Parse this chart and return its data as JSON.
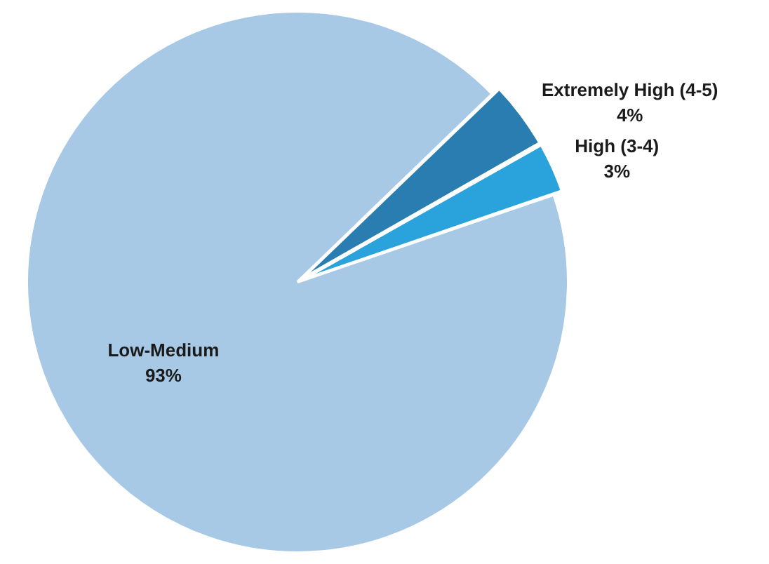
{
  "chart_data": {
    "type": "pie",
    "categories": [
      "Low-Medium",
      "Extremely High (4-5)",
      "High (3-4)"
    ],
    "values": [
      93,
      4,
      3
    ],
    "colors": [
      "#a8c9e6",
      "#2a7db0",
      "#2aa3dc"
    ],
    "value_labels": [
      "93%",
      "4%",
      "3%"
    ],
    "legend": false
  }
}
